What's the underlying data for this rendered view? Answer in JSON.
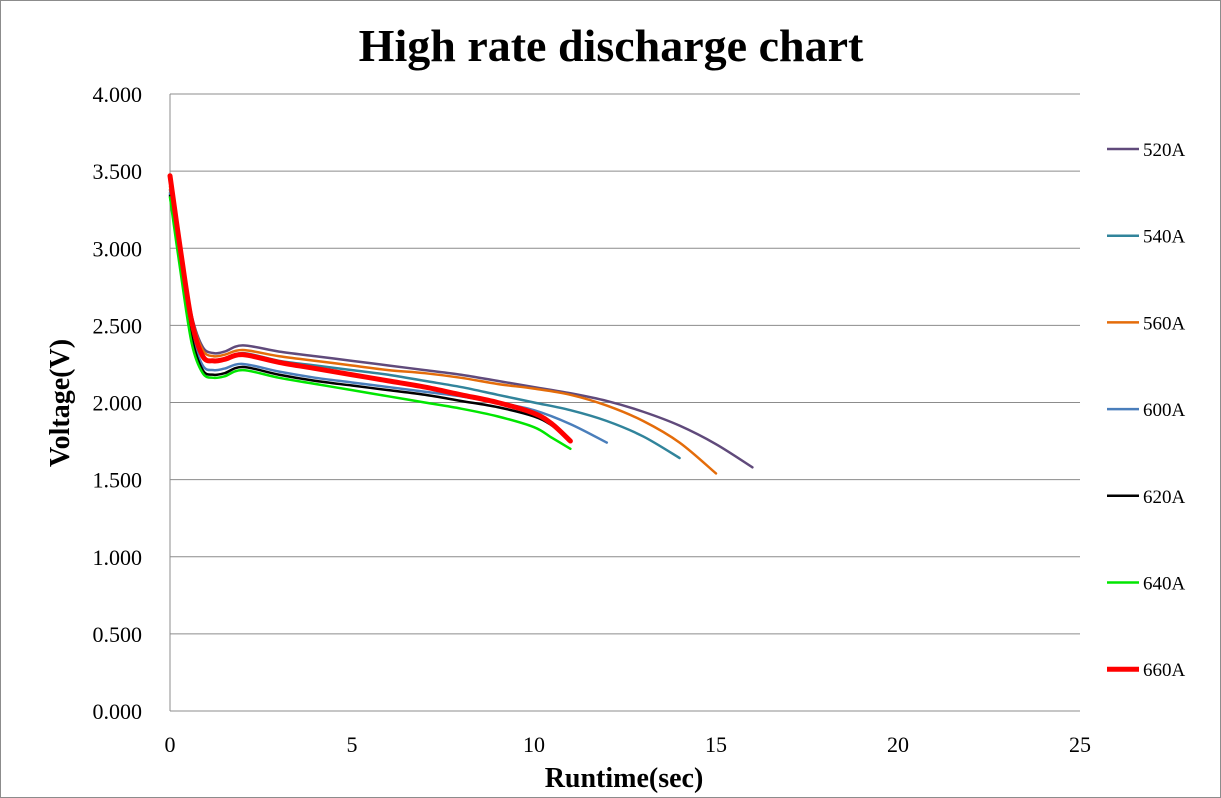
{
  "chart_data": {
    "type": "line",
    "title": "High rate discharge chart",
    "xlabel": "Runtime(sec)",
    "ylabel": "Voltage(V)",
    "xlim": [
      0,
      25
    ],
    "ylim": [
      0,
      4
    ],
    "xticks": [
      0,
      5,
      10,
      15,
      20,
      25
    ],
    "xtick_labels": [
      "0",
      "5",
      "10",
      "15",
      "20",
      "25"
    ],
    "yticks": [
      0,
      0.5,
      1,
      1.5,
      2,
      2.5,
      3,
      3.5,
      4
    ],
    "ytick_labels": [
      "0.000",
      "0.500",
      "1.000",
      "1.500",
      "2.000",
      "2.500",
      "3.000",
      "3.500",
      "4.000"
    ],
    "grid": "horizontal",
    "legend_position": "right",
    "series": [
      {
        "name": "520A",
        "color": "#604a7b",
        "width": "normal",
        "x": [
          0,
          0.3,
          0.6,
          0.9,
          1.2,
          1.5,
          2,
          3,
          4,
          5,
          6,
          7,
          8,
          9,
          10,
          11,
          12,
          13,
          14,
          15,
          16
        ],
        "y": [
          3.38,
          2.95,
          2.56,
          2.36,
          2.32,
          2.33,
          2.37,
          2.33,
          2.3,
          2.27,
          2.24,
          2.21,
          2.18,
          2.14,
          2.1,
          2.06,
          2.01,
          1.94,
          1.85,
          1.73,
          1.58
        ]
      },
      {
        "name": "540A",
        "color": "#31849b",
        "width": "normal",
        "x": [
          0,
          0.3,
          0.6,
          0.9,
          1.2,
          1.5,
          2,
          3,
          4,
          5,
          6,
          7,
          8,
          9,
          10,
          11,
          12,
          13,
          14
        ],
        "y": [
          3.36,
          2.92,
          2.5,
          2.3,
          2.27,
          2.28,
          2.32,
          2.27,
          2.24,
          2.21,
          2.18,
          2.14,
          2.1,
          2.05,
          2.0,
          1.95,
          1.88,
          1.78,
          1.64
        ]
      },
      {
        "name": "560A",
        "color": "#e46c0a",
        "width": "normal",
        "x": [
          0,
          0.3,
          0.6,
          0.9,
          1.2,
          1.5,
          2,
          3,
          4,
          5,
          6,
          7,
          8,
          9,
          10,
          11,
          12,
          13,
          14,
          15
        ],
        "y": [
          3.4,
          2.96,
          2.55,
          2.34,
          2.3,
          2.31,
          2.34,
          2.3,
          2.27,
          2.24,
          2.21,
          2.19,
          2.16,
          2.12,
          2.09,
          2.05,
          1.98,
          1.88,
          1.74,
          1.54
        ]
      },
      {
        "name": "600A",
        "color": "#4a7ebb",
        "width": "normal",
        "x": [
          0,
          0.3,
          0.6,
          0.9,
          1.2,
          1.5,
          2,
          3,
          4,
          5,
          6,
          7,
          8,
          9,
          10,
          11,
          12
        ],
        "y": [
          3.35,
          2.88,
          2.45,
          2.24,
          2.21,
          2.22,
          2.25,
          2.2,
          2.16,
          2.13,
          2.1,
          2.07,
          2.04,
          2.0,
          1.95,
          1.86,
          1.74
        ]
      },
      {
        "name": "620A",
        "color": "#000000",
        "width": "normal",
        "x": [
          0,
          0.3,
          0.6,
          0.9,
          1.2,
          1.5,
          2,
          3,
          4,
          5,
          6,
          7,
          8,
          9,
          10,
          10.5,
          11
        ],
        "y": [
          3.34,
          2.86,
          2.42,
          2.21,
          2.18,
          2.19,
          2.23,
          2.18,
          2.14,
          2.11,
          2.08,
          2.05,
          2.01,
          1.97,
          1.91,
          1.85,
          1.76
        ]
      },
      {
        "name": "640A",
        "color": "#00e600",
        "width": "normal",
        "x": [
          0,
          0.3,
          0.6,
          0.9,
          1.2,
          1.5,
          2,
          3,
          4,
          5,
          6,
          7,
          8,
          9,
          10,
          10.5,
          11
        ],
        "y": [
          3.33,
          2.83,
          2.38,
          2.19,
          2.16,
          2.17,
          2.21,
          2.16,
          2.12,
          2.08,
          2.04,
          2.0,
          1.96,
          1.91,
          1.84,
          1.77,
          1.7
        ]
      },
      {
        "name": "660A",
        "color": "#ff0000",
        "width": "thick",
        "x": [
          0,
          0.3,
          0.6,
          0.9,
          1.2,
          1.5,
          2,
          3,
          4,
          5,
          6,
          7,
          8,
          9,
          10,
          10.5,
          11
        ],
        "y": [
          3.47,
          2.97,
          2.52,
          2.3,
          2.27,
          2.28,
          2.31,
          2.26,
          2.22,
          2.18,
          2.14,
          2.1,
          2.05,
          2.0,
          1.93,
          1.86,
          1.75
        ]
      }
    ]
  }
}
